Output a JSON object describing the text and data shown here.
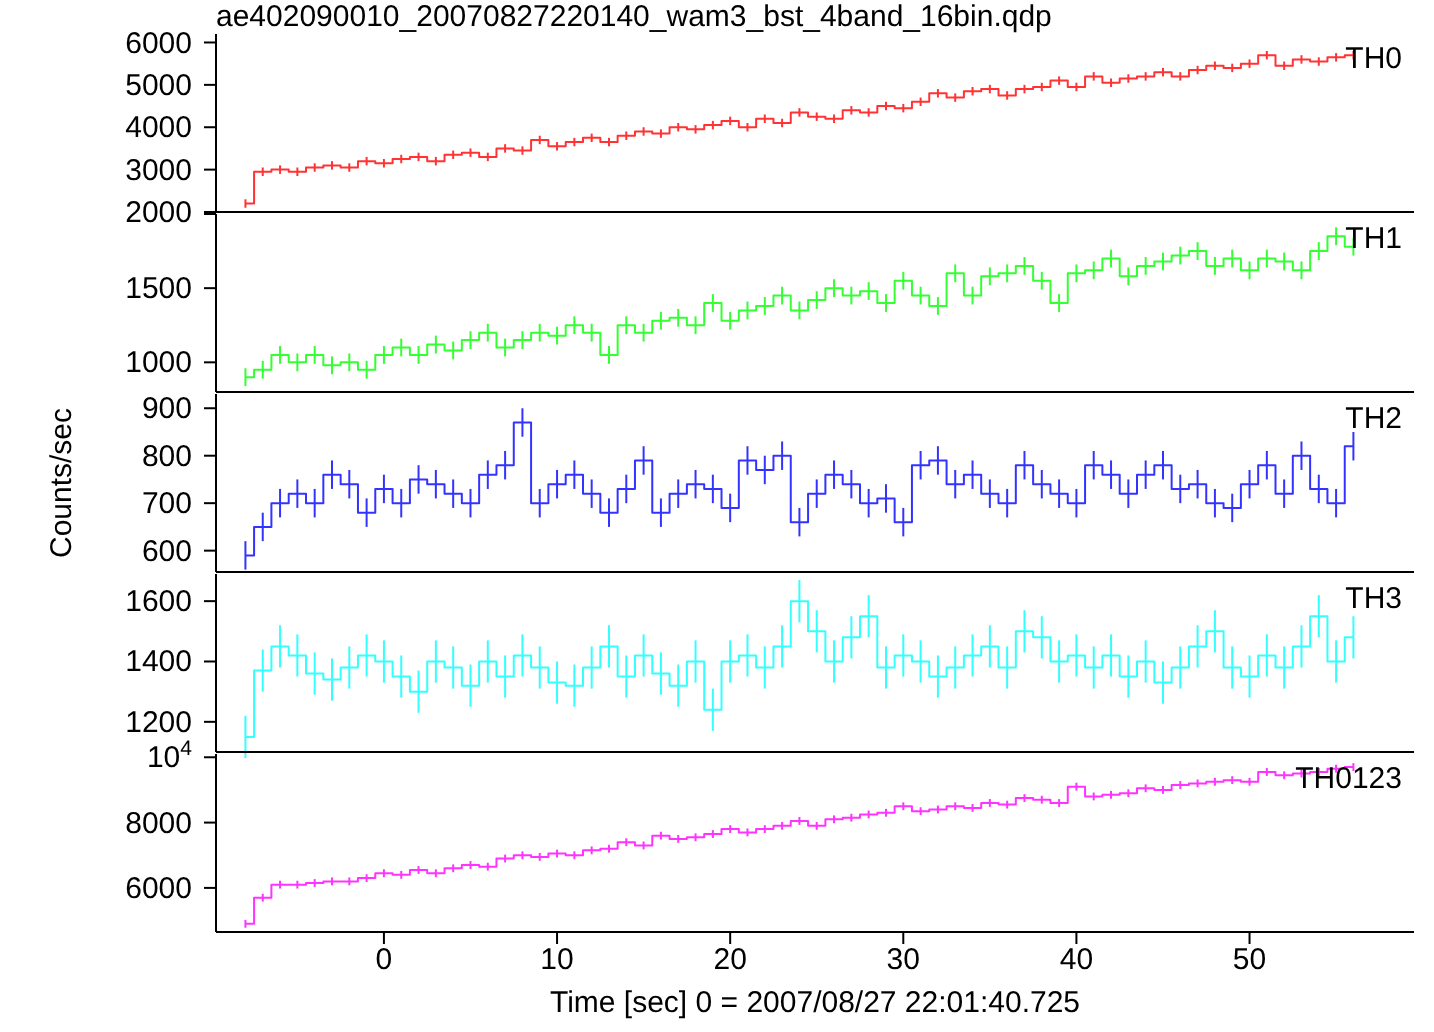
{
  "chart_data": [
    {
      "type": "step",
      "title": "ae402090010_20070827220140_wam3_bst_4band_16bin.qdp",
      "x": [
        -8,
        -7,
        -6,
        -5,
        -4,
        -3,
        -2,
        -1,
        0,
        1,
        2,
        3,
        4,
        5,
        6,
        7,
        8,
        9,
        10,
        11,
        12,
        13,
        14,
        15,
        16,
        17,
        18,
        19,
        20,
        21,
        22,
        23,
        24,
        25,
        26,
        27,
        28,
        29,
        30,
        31,
        32,
        33,
        34,
        35,
        36,
        37,
        38,
        39,
        40,
        41,
        42,
        43,
        44,
        45,
        46,
        47,
        48,
        49,
        50,
        51,
        52,
        53,
        54,
        55,
        56
      ],
      "xlim": [
        -9.7,
        59.5
      ],
      "xticks": [
        0,
        10,
        20,
        30,
        40,
        50
      ],
      "ylim": [
        2000,
        6200
      ],
      "yticks": [
        2000,
        3000,
        4000,
        5000,
        6000
      ],
      "tick_labels": "y",
      "marker": "none",
      "series": [
        {
          "name": "TH0",
          "color": "#ff3333",
          "values": [
            2200,
            2950,
            3000,
            2950,
            3050,
            3100,
            3050,
            3200,
            3150,
            3250,
            3300,
            3200,
            3350,
            3400,
            3300,
            3500,
            3450,
            3700,
            3550,
            3650,
            3750,
            3650,
            3800,
            3900,
            3850,
            4000,
            3950,
            4050,
            4150,
            4000,
            4200,
            4100,
            4350,
            4250,
            4200,
            4400,
            4350,
            4500,
            4450,
            4600,
            4800,
            4700,
            4850,
            4900,
            4750,
            4900,
            4950,
            5100,
            4950,
            5200,
            5050,
            5150,
            5200,
            5300,
            5200,
            5350,
            5450,
            5400,
            5500,
            5700,
            5450,
            5600,
            5550,
            5650,
            5700
          ],
          "errors": [
            100,
            100,
            100,
            100,
            100,
            100,
            100,
            100,
            100,
            100,
            100,
            100,
            100,
            100,
            100,
            100,
            100,
            100,
            100,
            100,
            100,
            100,
            100,
            100,
            100,
            100,
            100,
            100,
            100,
            100,
            100,
            100,
            100,
            100,
            100,
            100,
            100,
            100,
            100,
            100,
            100,
            100,
            100,
            100,
            100,
            100,
            100,
            100,
            100,
            100,
            100,
            100,
            100,
            100,
            100,
            100,
            100,
            100,
            100,
            100,
            100,
            100,
            100,
            100,
            100
          ]
        }
      ]
    },
    {
      "type": "step",
      "x": [
        -8,
        -7,
        -6,
        -5,
        -4,
        -3,
        -2,
        -1,
        0,
        1,
        2,
        3,
        4,
        5,
        6,
        7,
        8,
        9,
        10,
        11,
        12,
        13,
        14,
        15,
        16,
        17,
        18,
        19,
        20,
        21,
        22,
        23,
        24,
        25,
        26,
        27,
        28,
        29,
        30,
        31,
        32,
        33,
        34,
        35,
        36,
        37,
        38,
        39,
        40,
        41,
        42,
        43,
        44,
        45,
        46,
        47,
        48,
        49,
        50,
        51,
        52,
        53,
        54,
        55,
        56
      ],
      "xlim": [
        -9.7,
        59.5
      ],
      "xticks": [
        0,
        10,
        20,
        30,
        40,
        50
      ],
      "ylim": [
        800,
        2000
      ],
      "yticks": [
        1000,
        1500,
        {
          "value": 2000,
          "label": null
        }
      ],
      "tick_labels": "y",
      "marker": "none",
      "series": [
        {
          "name": "TH1",
          "color": "#33ff33",
          "values": [
            900,
            950,
            1050,
            1000,
            1050,
            980,
            1000,
            950,
            1050,
            1100,
            1050,
            1120,
            1080,
            1150,
            1200,
            1100,
            1150,
            1200,
            1180,
            1250,
            1200,
            1050,
            1250,
            1200,
            1280,
            1300,
            1250,
            1400,
            1280,
            1350,
            1380,
            1450,
            1350,
            1420,
            1500,
            1450,
            1480,
            1400,
            1550,
            1450,
            1380,
            1600,
            1450,
            1580,
            1600,
            1650,
            1550,
            1400,
            1600,
            1620,
            1700,
            1580,
            1650,
            1680,
            1720,
            1750,
            1650,
            1700,
            1620,
            1700,
            1680,
            1620,
            1750,
            1850,
            1780
          ],
          "errors": [
            60,
            60,
            60,
            60,
            60,
            60,
            60,
            60,
            60,
            60,
            60,
            60,
            60,
            60,
            60,
            60,
            60,
            60,
            60,
            60,
            60,
            60,
            60,
            60,
            60,
            60,
            60,
            60,
            60,
            60,
            60,
            60,
            60,
            60,
            60,
            60,
            60,
            60,
            60,
            60,
            60,
            60,
            60,
            60,
            60,
            60,
            60,
            60,
            60,
            60,
            60,
            60,
            60,
            60,
            60,
            60,
            60,
            60,
            60,
            60,
            60,
            60,
            60,
            60,
            60
          ]
        }
      ]
    },
    {
      "type": "step",
      "ylabel": "Counts/sec",
      "x": [
        -8,
        -7,
        -6,
        -5,
        -4,
        -3,
        -2,
        -1,
        0,
        1,
        2,
        3,
        4,
        5,
        6,
        7,
        8,
        9,
        10,
        11,
        12,
        13,
        14,
        15,
        16,
        17,
        18,
        19,
        20,
        21,
        22,
        23,
        24,
        25,
        26,
        27,
        28,
        29,
        30,
        31,
        32,
        33,
        34,
        35,
        36,
        37,
        38,
        39,
        40,
        41,
        42,
        43,
        44,
        45,
        46,
        47,
        48,
        49,
        50,
        51,
        52,
        53,
        54,
        55,
        56
      ],
      "xlim": [
        -9.7,
        59.5
      ],
      "xticks": [
        0,
        10,
        20,
        30,
        40,
        50
      ],
      "ylim": [
        555,
        930
      ],
      "yticks": [
        600,
        700,
        800,
        900
      ],
      "tick_labels": "y",
      "marker": "none",
      "series": [
        {
          "name": "TH2",
          "color": "#3333ff",
          "values": [
            590,
            650,
            700,
            720,
            700,
            760,
            740,
            680,
            730,
            700,
            750,
            740,
            720,
            700,
            760,
            780,
            870,
            700,
            740,
            760,
            720,
            680,
            730,
            790,
            680,
            720,
            740,
            730,
            690,
            790,
            770,
            800,
            660,
            720,
            760,
            740,
            700,
            710,
            660,
            780,
            790,
            740,
            760,
            720,
            700,
            780,
            740,
            720,
            700,
            780,
            760,
            720,
            760,
            780,
            730,
            740,
            700,
            690,
            740,
            780,
            720,
            800,
            730,
            700,
            820
          ],
          "errors": [
            30,
            30,
            30,
            30,
            30,
            30,
            30,
            30,
            30,
            30,
            30,
            30,
            30,
            30,
            30,
            30,
            30,
            30,
            30,
            30,
            30,
            30,
            30,
            30,
            30,
            30,
            30,
            30,
            30,
            30,
            30,
            30,
            30,
            30,
            30,
            30,
            30,
            30,
            30,
            30,
            30,
            30,
            30,
            30,
            30,
            30,
            30,
            30,
            30,
            30,
            30,
            30,
            30,
            30,
            30,
            30,
            30,
            30,
            30,
            30,
            30,
            30,
            30,
            30,
            30
          ]
        }
      ]
    },
    {
      "type": "step",
      "x": [
        -8,
        -7,
        -6,
        -5,
        -4,
        -3,
        -2,
        -1,
        0,
        1,
        2,
        3,
        4,
        5,
        6,
        7,
        8,
        9,
        10,
        11,
        12,
        13,
        14,
        15,
        16,
        17,
        18,
        19,
        20,
        21,
        22,
        23,
        24,
        25,
        26,
        27,
        28,
        29,
        30,
        31,
        32,
        33,
        34,
        35,
        36,
        37,
        38,
        39,
        40,
        41,
        42,
        43,
        44,
        45,
        46,
        47,
        48,
        49,
        50,
        51,
        52,
        53,
        54,
        55,
        56
      ],
      "xlim": [
        -9.7,
        59.5
      ],
      "xticks": [
        0,
        10,
        20,
        30,
        40,
        50
      ],
      "ylim": [
        1100,
        1690
      ],
      "yticks": [
        1200,
        1400,
        1600
      ],
      "tick_labels": "y",
      "marker": "none",
      "series": [
        {
          "name": "TH3",
          "color": "#33ffff",
          "values": [
            1150,
            1370,
            1450,
            1420,
            1360,
            1340,
            1380,
            1420,
            1400,
            1350,
            1300,
            1400,
            1380,
            1320,
            1400,
            1350,
            1420,
            1380,
            1330,
            1320,
            1380,
            1450,
            1350,
            1420,
            1360,
            1320,
            1400,
            1240,
            1400,
            1420,
            1380,
            1450,
            1600,
            1500,
            1400,
            1480,
            1550,
            1380,
            1420,
            1400,
            1350,
            1380,
            1420,
            1450,
            1380,
            1500,
            1480,
            1400,
            1420,
            1380,
            1420,
            1350,
            1400,
            1330,
            1380,
            1450,
            1500,
            1380,
            1350,
            1420,
            1380,
            1450,
            1550,
            1400,
            1480
          ],
          "errors": [
            70,
            70,
            70,
            70,
            70,
            70,
            70,
            70,
            70,
            70,
            70,
            70,
            70,
            70,
            70,
            70,
            70,
            70,
            70,
            70,
            70,
            70,
            70,
            70,
            70,
            70,
            70,
            70,
            70,
            70,
            70,
            70,
            70,
            70,
            70,
            70,
            70,
            70,
            70,
            70,
            70,
            70,
            70,
            70,
            70,
            70,
            70,
            70,
            70,
            70,
            70,
            70,
            70,
            70,
            70,
            70,
            70,
            70,
            70,
            70,
            70,
            70,
            70,
            70,
            70
          ]
        }
      ]
    },
    {
      "type": "step",
      "xlabel": "Time [sec] 0 = 2007/08/27 22:01:40.725",
      "x": [
        -8,
        -7,
        -6,
        -5,
        -4,
        -3,
        -2,
        -1,
        0,
        1,
        2,
        3,
        4,
        5,
        6,
        7,
        8,
        9,
        10,
        11,
        12,
        13,
        14,
        15,
        16,
        17,
        18,
        19,
        20,
        21,
        22,
        23,
        24,
        25,
        26,
        27,
        28,
        29,
        30,
        31,
        32,
        33,
        34,
        35,
        36,
        37,
        38,
        39,
        40,
        41,
        42,
        43,
        44,
        45,
        46,
        47,
        48,
        49,
        50,
        51,
        52,
        53,
        54,
        55,
        56
      ],
      "xlim": [
        -9.7,
        59.5
      ],
      "xticks": [
        0,
        10,
        20,
        30,
        40,
        50
      ],
      "ylim": [
        4650,
        10100
      ],
      "yticks": [
        6000,
        8000,
        {
          "value": 10000,
          "label": "10$^{4}$"
        }
      ],
      "marker": "none",
      "series": [
        {
          "name": "TH0123",
          "color": "#ff33ff",
          "values": [
            4900,
            5700,
            6100,
            6100,
            6150,
            6200,
            6200,
            6300,
            6450,
            6400,
            6550,
            6450,
            6600,
            6700,
            6650,
            6900,
            7000,
            6950,
            7050,
            7000,
            7150,
            7200,
            7400,
            7300,
            7600,
            7500,
            7550,
            7650,
            7800,
            7700,
            7800,
            7900,
            8050,
            7900,
            8100,
            8150,
            8250,
            8300,
            8500,
            8350,
            8400,
            8500,
            8450,
            8600,
            8550,
            8750,
            8700,
            8600,
            9100,
            8800,
            8850,
            8900,
            9050,
            9000,
            9150,
            9200,
            9250,
            9300,
            9250,
            9550,
            9450,
            9500,
            9550,
            9650,
            9700
          ],
          "errors": [
            120,
            120,
            120,
            120,
            120,
            120,
            120,
            120,
            120,
            120,
            120,
            120,
            120,
            120,
            120,
            120,
            120,
            120,
            120,
            120,
            120,
            120,
            120,
            120,
            120,
            120,
            120,
            120,
            120,
            120,
            120,
            120,
            120,
            120,
            120,
            120,
            120,
            120,
            120,
            120,
            120,
            120,
            120,
            120,
            120,
            120,
            120,
            120,
            120,
            120,
            120,
            120,
            120,
            120,
            120,
            120,
            120,
            120,
            120,
            120,
            120,
            120,
            120,
            120,
            120
          ]
        }
      ]
    }
  ]
}
